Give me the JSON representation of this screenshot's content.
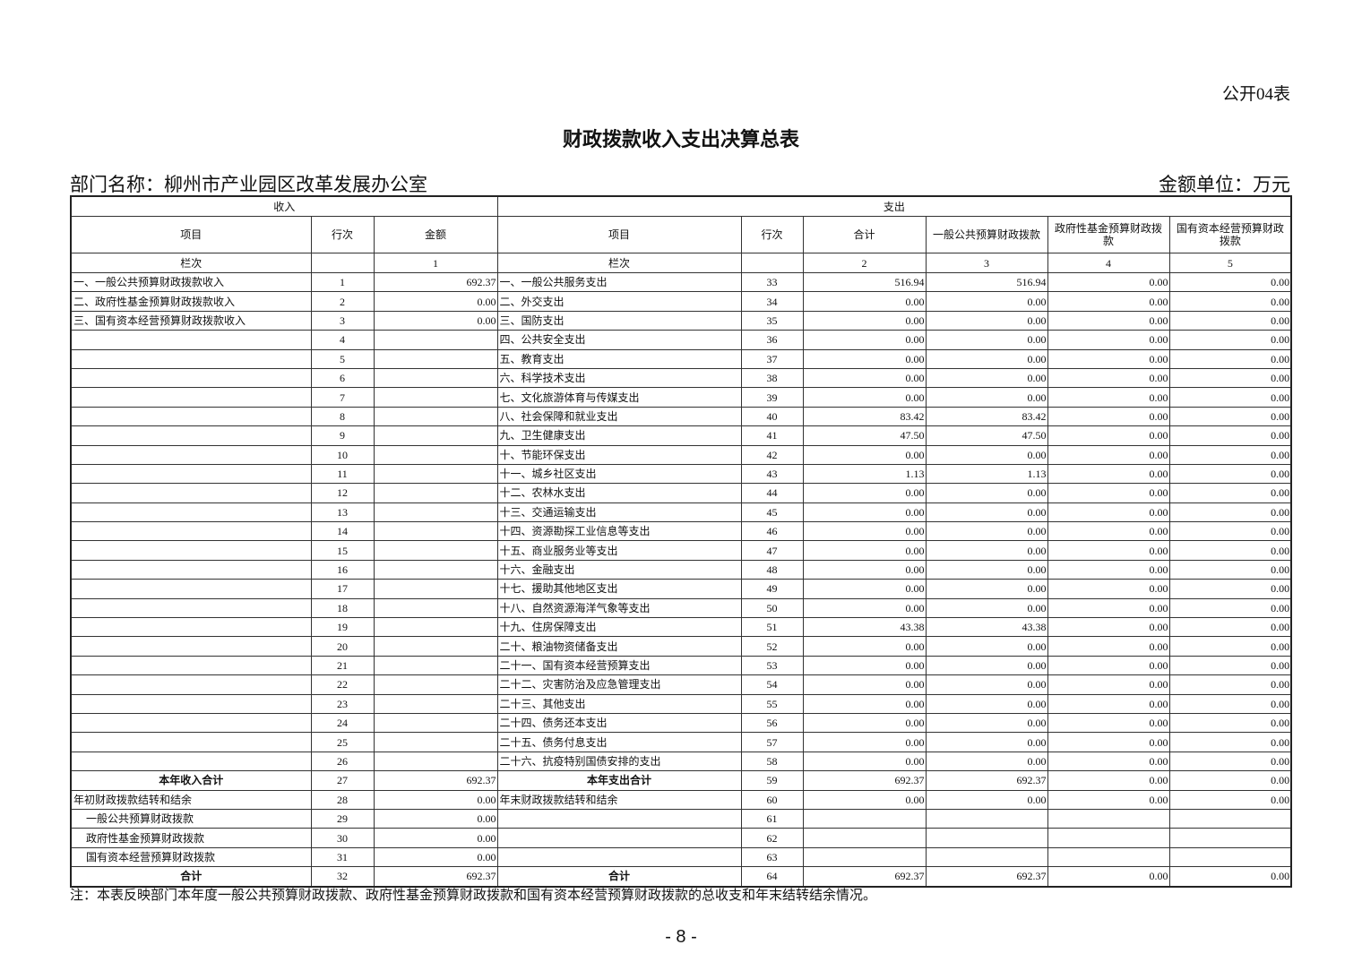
{
  "form_no": "公开04表",
  "title": "财政拨款收入支出决算总表",
  "department": "部门名称：柳州市产业园区改革发展办公室",
  "unit": "金额单位：万元",
  "header": {
    "income": "收入",
    "expense": "支出",
    "item": "项目",
    "line": "行次",
    "amount": "金额",
    "exp_item": "项目",
    "exp_line": "行次",
    "total": "合计",
    "general": "一般公共预算财政拨款",
    "gov_fund": "政府性基金预算财政拨款",
    "state_capital": "国有资本经营预算财政拨款",
    "col_label": "栏次",
    "exp_col_label": "栏次",
    "col1": "1",
    "col2": "2",
    "col3": "3",
    "col4": "4",
    "col5": "5"
  },
  "rows": [
    {
      "in_item": "一、一般公共预算财政拨款收入",
      "in_line": "1",
      "in_amt": "692.37",
      "ex_item": "一、一般公共服务支出",
      "ex_line": "33",
      "v": [
        "516.94",
        "516.94",
        "0.00",
        "0.00"
      ]
    },
    {
      "in_item": "二、政府性基金预算财政拨款收入",
      "in_line": "2",
      "in_amt": "0.00",
      "ex_item": "二、外交支出",
      "ex_line": "34",
      "v": [
        "0.00",
        "0.00",
        "0.00",
        "0.00"
      ]
    },
    {
      "in_item": "三、国有资本经营预算财政拨款收入",
      "in_line": "3",
      "in_amt": "0.00",
      "ex_item": "三、国防支出",
      "ex_line": "35",
      "v": [
        "0.00",
        "0.00",
        "0.00",
        "0.00"
      ]
    },
    {
      "in_item": "",
      "in_line": "4",
      "in_amt": "",
      "ex_item": "四、公共安全支出",
      "ex_line": "36",
      "v": [
        "0.00",
        "0.00",
        "0.00",
        "0.00"
      ]
    },
    {
      "in_item": "",
      "in_line": "5",
      "in_amt": "",
      "ex_item": "五、教育支出",
      "ex_line": "37",
      "v": [
        "0.00",
        "0.00",
        "0.00",
        "0.00"
      ]
    },
    {
      "in_item": "",
      "in_line": "6",
      "in_amt": "",
      "ex_item": "六、科学技术支出",
      "ex_line": "38",
      "v": [
        "0.00",
        "0.00",
        "0.00",
        "0.00"
      ]
    },
    {
      "in_item": "",
      "in_line": "7",
      "in_amt": "",
      "ex_item": "七、文化旅游体育与传媒支出",
      "ex_line": "39",
      "v": [
        "0.00",
        "0.00",
        "0.00",
        "0.00"
      ]
    },
    {
      "in_item": "",
      "in_line": "8",
      "in_amt": "",
      "ex_item": "八、社会保障和就业支出",
      "ex_line": "40",
      "v": [
        "83.42",
        "83.42",
        "0.00",
        "0.00"
      ]
    },
    {
      "in_item": "",
      "in_line": "9",
      "in_amt": "",
      "ex_item": "九、卫生健康支出",
      "ex_line": "41",
      "v": [
        "47.50",
        "47.50",
        "0.00",
        "0.00"
      ]
    },
    {
      "in_item": "",
      "in_line": "10",
      "in_amt": "",
      "ex_item": "十、节能环保支出",
      "ex_line": "42",
      "v": [
        "0.00",
        "0.00",
        "0.00",
        "0.00"
      ]
    },
    {
      "in_item": "",
      "in_line": "11",
      "in_amt": "",
      "ex_item": "十一、城乡社区支出",
      "ex_line": "43",
      "v": [
        "1.13",
        "1.13",
        "0.00",
        "0.00"
      ]
    },
    {
      "in_item": "",
      "in_line": "12",
      "in_amt": "",
      "ex_item": "十二、农林水支出",
      "ex_line": "44",
      "v": [
        "0.00",
        "0.00",
        "0.00",
        "0.00"
      ]
    },
    {
      "in_item": "",
      "in_line": "13",
      "in_amt": "",
      "ex_item": "十三、交通运输支出",
      "ex_line": "45",
      "v": [
        "0.00",
        "0.00",
        "0.00",
        "0.00"
      ]
    },
    {
      "in_item": "",
      "in_line": "14",
      "in_amt": "",
      "ex_item": "十四、资源勘探工业信息等支出",
      "ex_line": "46",
      "v": [
        "0.00",
        "0.00",
        "0.00",
        "0.00"
      ]
    },
    {
      "in_item": "",
      "in_line": "15",
      "in_amt": "",
      "ex_item": "十五、商业服务业等支出",
      "ex_line": "47",
      "v": [
        "0.00",
        "0.00",
        "0.00",
        "0.00"
      ]
    },
    {
      "in_item": "",
      "in_line": "16",
      "in_amt": "",
      "ex_item": "十六、金融支出",
      "ex_line": "48",
      "v": [
        "0.00",
        "0.00",
        "0.00",
        "0.00"
      ]
    },
    {
      "in_item": "",
      "in_line": "17",
      "in_amt": "",
      "ex_item": "十七、援助其他地区支出",
      "ex_line": "49",
      "v": [
        "0.00",
        "0.00",
        "0.00",
        "0.00"
      ]
    },
    {
      "in_item": "",
      "in_line": "18",
      "in_amt": "",
      "ex_item": "十八、自然资源海洋气象等支出",
      "ex_line": "50",
      "v": [
        "0.00",
        "0.00",
        "0.00",
        "0.00"
      ]
    },
    {
      "in_item": "",
      "in_line": "19",
      "in_amt": "",
      "ex_item": "十九、住房保障支出",
      "ex_line": "51",
      "v": [
        "43.38",
        "43.38",
        "0.00",
        "0.00"
      ]
    },
    {
      "in_item": "",
      "in_line": "20",
      "in_amt": "",
      "ex_item": "二十、粮油物资储备支出",
      "ex_line": "52",
      "v": [
        "0.00",
        "0.00",
        "0.00",
        "0.00"
      ]
    },
    {
      "in_item": "",
      "in_line": "21",
      "in_amt": "",
      "ex_item": "二十一、国有资本经营预算支出",
      "ex_line": "53",
      "v": [
        "0.00",
        "0.00",
        "0.00",
        "0.00"
      ]
    },
    {
      "in_item": "",
      "in_line": "22",
      "in_amt": "",
      "ex_item": "二十二、灾害防治及应急管理支出",
      "ex_line": "54",
      "v": [
        "0.00",
        "0.00",
        "0.00",
        "0.00"
      ]
    },
    {
      "in_item": "",
      "in_line": "23",
      "in_amt": "",
      "ex_item": "二十三、其他支出",
      "ex_line": "55",
      "v": [
        "0.00",
        "0.00",
        "0.00",
        "0.00"
      ]
    },
    {
      "in_item": "",
      "in_line": "24",
      "in_amt": "",
      "ex_item": "二十四、债务还本支出",
      "ex_line": "56",
      "v": [
        "0.00",
        "0.00",
        "0.00",
        "0.00"
      ]
    },
    {
      "in_item": "",
      "in_line": "25",
      "in_amt": "",
      "ex_item": "二十五、债务付息支出",
      "ex_line": "57",
      "v": [
        "0.00",
        "0.00",
        "0.00",
        "0.00"
      ]
    },
    {
      "in_item": "",
      "in_line": "26",
      "in_amt": "",
      "ex_item": "二十六、抗疫特别国债安排的支出",
      "ex_line": "58",
      "v": [
        "0.00",
        "0.00",
        "0.00",
        "0.00"
      ]
    },
    {
      "in_item": "本年收入合计",
      "in_line": "27",
      "in_amt": "692.37",
      "ex_item": "本年支出合计",
      "ex_line": "59",
      "v": [
        "692.37",
        "692.37",
        "0.00",
        "0.00"
      ],
      "bold": true
    },
    {
      "in_item": "年初财政拨款结转和结余",
      "in_line": "28",
      "in_amt": "0.00",
      "ex_item": "年末财政拨款结转和结余",
      "ex_line": "60",
      "v": [
        "0.00",
        "0.00",
        "0.00",
        "0.00"
      ]
    },
    {
      "in_item": "一般公共预算财政拨款",
      "in_line": "29",
      "in_amt": "0.00",
      "ex_item": "",
      "ex_line": "61",
      "v": [
        "",
        "",
        "",
        ""
      ],
      "indent": true
    },
    {
      "in_item": "政府性基金预算财政拨款",
      "in_line": "30",
      "in_amt": "0.00",
      "ex_item": "",
      "ex_line": "62",
      "v": [
        "",
        "",
        "",
        ""
      ],
      "indent": true
    },
    {
      "in_item": "国有资本经营预算财政拨款",
      "in_line": "31",
      "in_amt": "0.00",
      "ex_item": "",
      "ex_line": "63",
      "v": [
        "",
        "",
        "",
        ""
      ],
      "indent": true
    },
    {
      "in_item": "合计",
      "in_line": "32",
      "in_amt": "692.37",
      "ex_item": "合计",
      "ex_line": "64",
      "v": [
        "692.37",
        "692.37",
        "0.00",
        "0.00"
      ],
      "bold": true
    }
  ],
  "note": "注：本表反映部门本年度一般公共预算财政拨款、政府性基金预算财政拨款和国有资本经营预算财政拨款的总收支和年末结转结余情况。",
  "page_number": "- 8 -"
}
